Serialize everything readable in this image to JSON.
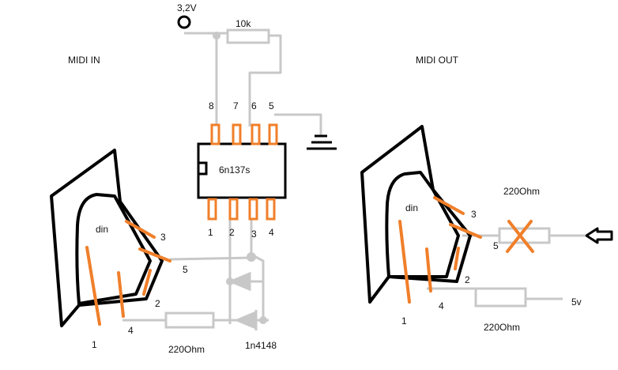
{
  "labels": {
    "supply": "3,2V",
    "resistor_pullup": "10k",
    "midi_in": "MIDI IN",
    "midi_out": "MIDI OUT",
    "chip": "6n137s",
    "din_in": "din",
    "din_out": "din",
    "resistor_in": "220Ohm",
    "diode": "1n4148",
    "resistor_out_top": "220Ohm",
    "resistor_out_bottom": "220Ohm",
    "supply_out": "5v"
  },
  "chip_pins": {
    "top": [
      "8",
      "7",
      "6",
      "5"
    ],
    "bottom": [
      "1",
      "2",
      "3",
      "4"
    ]
  },
  "din_in_pins": {
    "p1": "1",
    "p2": "2",
    "p3": "3",
    "p4": "4",
    "p5": "5"
  },
  "din_out_pins": {
    "p1": "1",
    "p2": "2",
    "p3": "3",
    "p4": "4",
    "p5": "5"
  },
  "colors": {
    "wire": "#c8c8c8",
    "outline": "#000000",
    "pin": "#f07f2a",
    "text": "#111111"
  }
}
